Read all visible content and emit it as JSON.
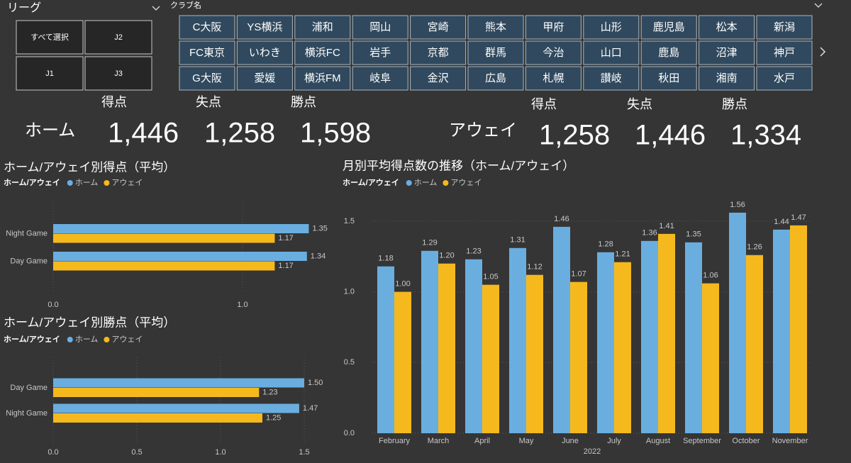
{
  "league_slicer": {
    "title": "リーグ",
    "options": [
      "すべて選択",
      "J2",
      "J1",
      "J3"
    ]
  },
  "club_slicer": {
    "title": "クラブ名",
    "options": [
      "C大阪",
      "YS横浜",
      "浦和",
      "岡山",
      "宮崎",
      "熊本",
      "甲府",
      "山形",
      "鹿児島",
      "松本",
      "新潟",
      "FC東京",
      "いわき",
      "横浜FC",
      "岩手",
      "京都",
      "群馬",
      "今治",
      "山口",
      "鹿島",
      "沼津",
      "神戸",
      "G大阪",
      "愛媛",
      "横浜FM",
      "岐阜",
      "金沢",
      "広島",
      "札幌",
      "讃岐",
      "秋田",
      "湘南",
      "水戸"
    ]
  },
  "cards": [
    {
      "label": "ホーム",
      "metrics": [
        {
          "name": "得点",
          "value": "1,446"
        },
        {
          "name": "失点",
          "value": "1,258"
        },
        {
          "name": "勝点",
          "value": "1,598"
        }
      ]
    },
    {
      "label": "アウェイ",
      "metrics": [
        {
          "name": "得点",
          "value": "1,258"
        },
        {
          "name": "失点",
          "value": "1,446"
        },
        {
          "name": "勝点",
          "value": "1,334"
        }
      ]
    }
  ],
  "chart_data": [
    {
      "type": "bar",
      "orientation": "horizontal",
      "title": "ホーム/アウェイ別得点（平均）",
      "legend_title": "ホーム/アウェイ",
      "categories": [
        "Night Game",
        "Day Game"
      ],
      "series": [
        {
          "name": "ホーム",
          "color": "#6aaee0",
          "values": [
            1.35,
            1.34
          ]
        },
        {
          "name": "アウェイ",
          "color": "#f5b91e",
          "values": [
            1.17,
            1.17
          ]
        }
      ],
      "xlim": [
        0,
        1.37
      ],
      "xticks": [
        {
          "value": 0,
          "label": "0.0"
        },
        {
          "value": 1,
          "label": "1.0"
        }
      ],
      "grid": true
    },
    {
      "type": "bar",
      "orientation": "horizontal",
      "title": "ホーム/アウェイ別勝点（平均）",
      "legend_title": "ホーム/アウェイ",
      "categories": [
        "Day Game",
        "Night Game"
      ],
      "series": [
        {
          "name": "ホーム",
          "color": "#6aaee0",
          "values": [
            1.5,
            1.47
          ],
          "value_labels": [
            "1.50",
            "1.47"
          ]
        },
        {
          "name": "アウェイ",
          "color": "#f5b91e",
          "values": [
            1.23,
            1.25
          ],
          "value_labels": [
            "1.23",
            "1.25"
          ]
        }
      ],
      "xlim": [
        0,
        1.52
      ],
      "xticks": [
        {
          "value": 0,
          "label": "0.0"
        },
        0.5,
        {
          "value": 1,
          "label": "1.0"
        },
        1.5
      ],
      "grid": true
    },
    {
      "type": "bar",
      "orientation": "vertical",
      "title": "月別平均得点数の推移（ホーム/アウェイ）",
      "legend_title": "ホーム/アウェイ",
      "xlabel": "2022",
      "categories": [
        "February",
        "March",
        "April",
        "May",
        "June",
        "July",
        "August",
        "September",
        "October",
        "November"
      ],
      "series": [
        {
          "name": "ホーム",
          "color": "#6aaee0",
          "values": [
            1.18,
            1.29,
            1.23,
            1.31,
            1.46,
            1.28,
            1.36,
            1.35,
            1.56,
            1.44
          ]
        },
        {
          "name": "アウェイ",
          "color": "#f5b91e",
          "values": [
            1.0,
            1.2,
            1.05,
            1.12,
            1.07,
            1.21,
            1.41,
            1.06,
            1.26,
            1.47
          ],
          "value_labels": [
            "1.00",
            "1.20",
            "1.05",
            "1.12",
            "1.07",
            "1.21",
            "1.41",
            "1.06",
            "1.26",
            "1.47"
          ]
        }
      ],
      "ylim": [
        0,
        1.65
      ],
      "yticks": [
        {
          "value": 0,
          "label": "0.0"
        },
        0.5,
        {
          "value": 1,
          "label": "1.0"
        },
        1.5
      ],
      "grid": true
    }
  ]
}
